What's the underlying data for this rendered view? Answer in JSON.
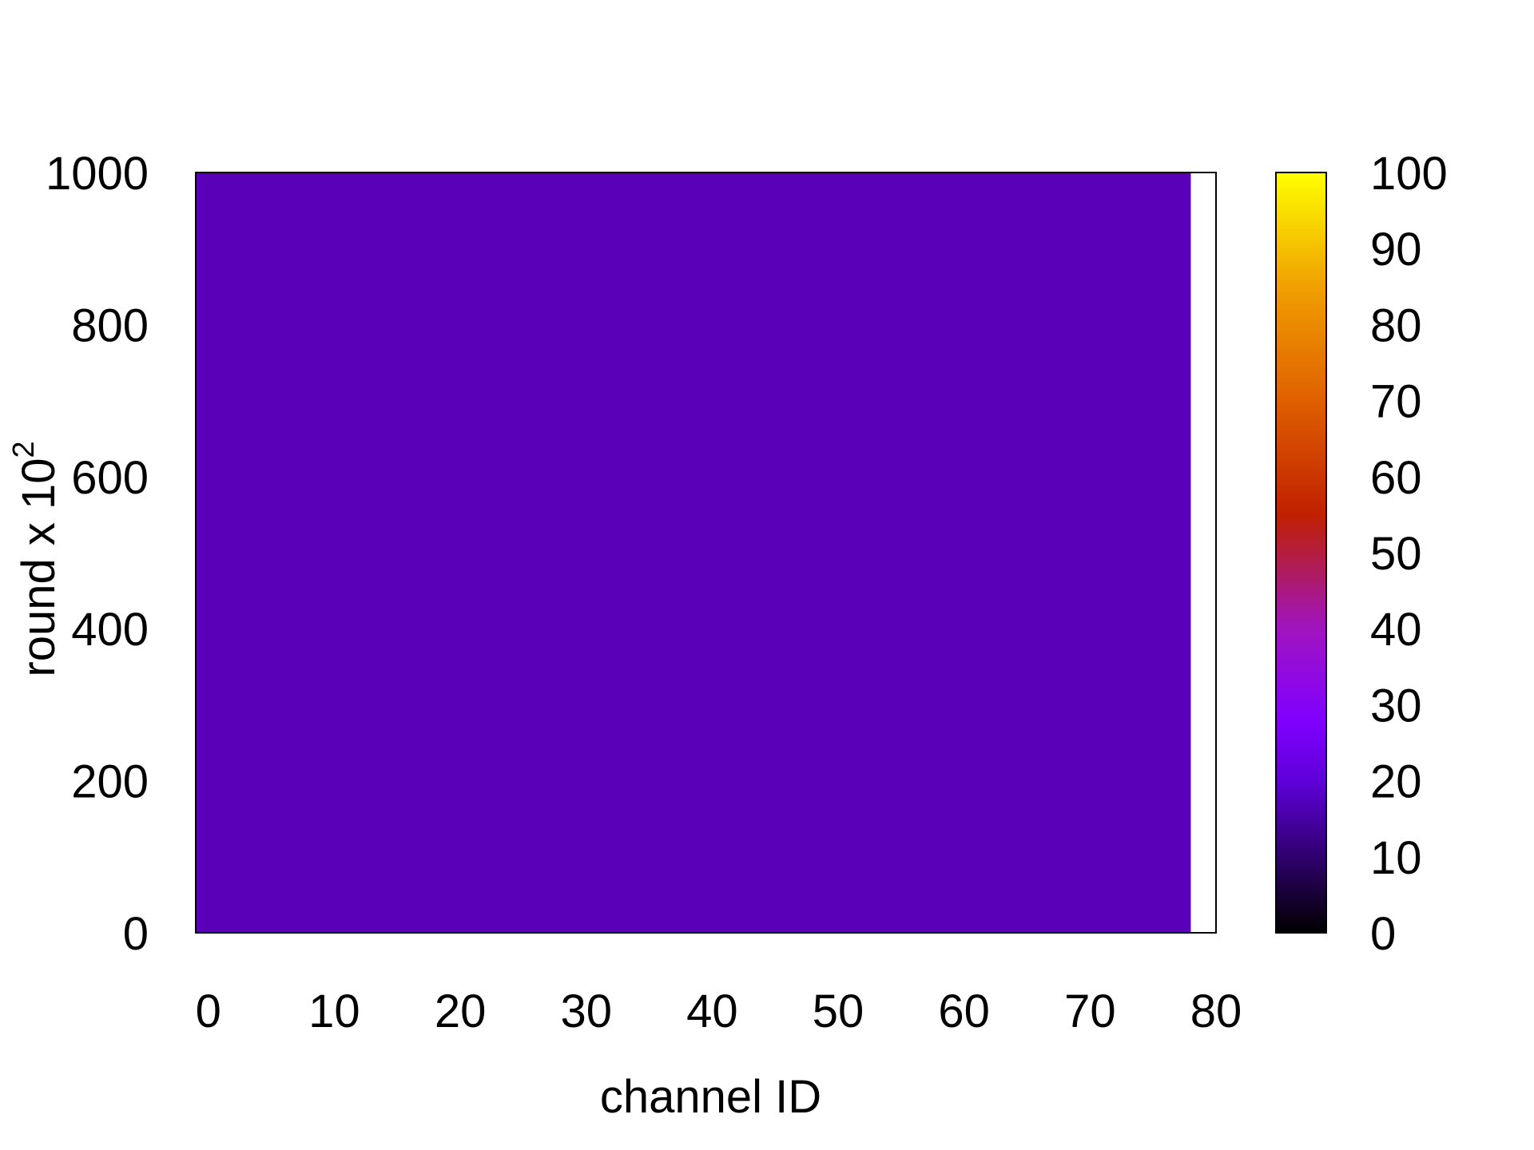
{
  "chart_data": {
    "type": "heatmap",
    "title": "",
    "xlabel": "channel ID",
    "ylabel": {
      "base": "round x 10",
      "superscript": "2"
    },
    "xlim": [
      -1,
      80
    ],
    "ylim": [
      0,
      1000
    ],
    "x_ticks": [
      0,
      10,
      20,
      30,
      40,
      50,
      60,
      70,
      80
    ],
    "y_ticks": [
      0,
      200,
      400,
      600,
      800,
      1000
    ],
    "data_extent": {
      "x": [
        -1,
        78
      ],
      "y": [
        0,
        1000
      ]
    },
    "cell_value": 14,
    "dominant_color": "#5a00b8",
    "colorbar": {
      "min": 0,
      "max": 100,
      "ticks": [
        0,
        10,
        20,
        30,
        40,
        50,
        60,
        70,
        80,
        90,
        100
      ],
      "colormap": "gnuplot-style black-purple-red-orange-yellow",
      "stops": [
        {
          "value": 0,
          "color": "#000000"
        },
        {
          "value": 10,
          "color": "#30006e"
        },
        {
          "value": 20,
          "color": "#5e00d8"
        },
        {
          "value": 28,
          "color": "#8000ff"
        },
        {
          "value": 40,
          "color": "#a014c0"
        },
        {
          "value": 48,
          "color": "#b01c58"
        },
        {
          "value": 55,
          "color": "#c02000"
        },
        {
          "value": 70,
          "color": "#e06000"
        },
        {
          "value": 85,
          "color": "#f0a000"
        },
        {
          "value": 100,
          "color": "#ffff00"
        }
      ]
    },
    "grid": false,
    "legend": "none"
  }
}
